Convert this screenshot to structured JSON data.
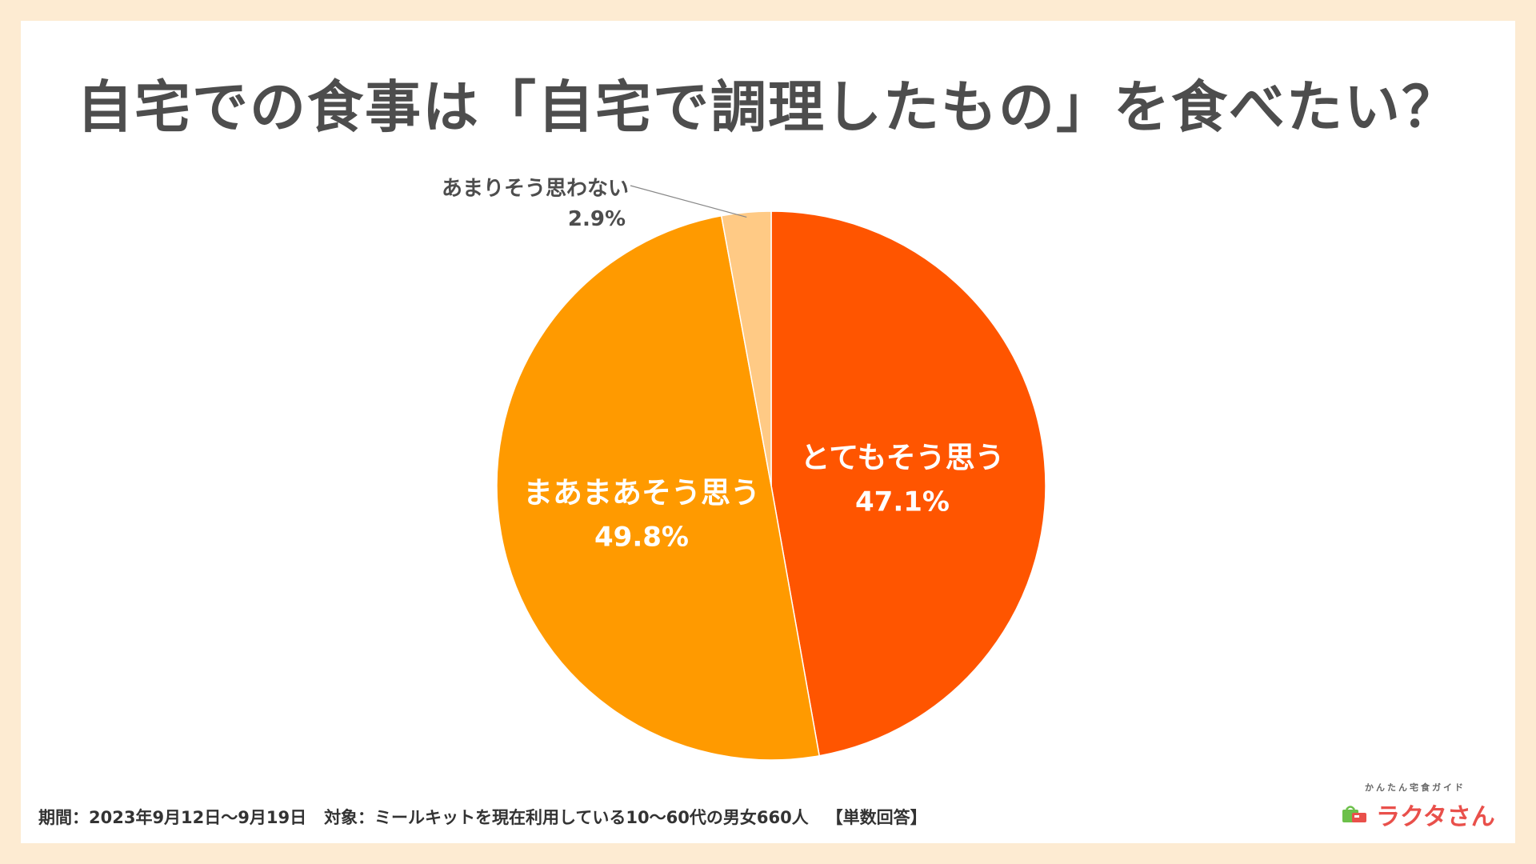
{
  "title": "自宅での食事は「自宅で調理したもの」を食べたい？",
  "chart_data": {
    "type": "pie",
    "title": "自宅での食事は「自宅で調理したもの」を食べたい？",
    "start": "12 o'clock, clockwise",
    "slices": [
      {
        "name": "とてもそう思う",
        "label": "とてもそう思う",
        "value": 47.1,
        "value_label": "47.1%",
        "color": "#ff5500",
        "label_color": "#ffffff",
        "label_placement": "inside"
      },
      {
        "name": "まあまあそう思う",
        "label": "まあまあそう思う",
        "value": 49.8,
        "value_label": "49.8%",
        "color": "#ff9a00",
        "label_color": "#ffffff",
        "label_placement": "inside"
      },
      {
        "name": "あまりそう思わない",
        "label": "あまりそう思わない",
        "value": 2.9,
        "value_label": "2.9%",
        "color": "#ffca85",
        "label_color": "#4d4d4d",
        "label_placement": "outside-leader"
      }
    ]
  },
  "footer": {
    "period_label": "期間：2023年9月12日〜9月19日",
    "target_label": "対象：ミールキットを現在利用している10〜60代の男女660人",
    "answer_type": "【単数回答】"
  },
  "logo": {
    "tagline": "かんたん宅食ガイド",
    "name": "ラクタさん",
    "color": "#e9504b",
    "icon": "shopping-bag-icon"
  }
}
